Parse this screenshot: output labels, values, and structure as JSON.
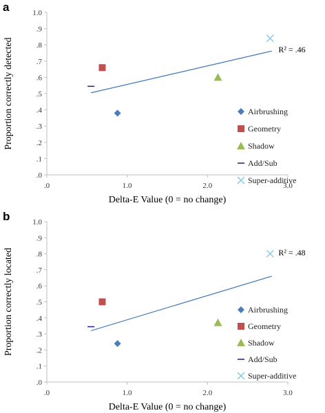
{
  "chart_data": [
    {
      "type": "scatter",
      "panel_label": "a",
      "xlabel": "Delta-E  Value  (0 = no change)",
      "ylabel": "Proportion correctly detected",
      "xlim": [
        0,
        3
      ],
      "ylim": [
        0,
        1
      ],
      "x_ticks": [
        ".0",
        "1.0",
        "2.0",
        "3.0"
      ],
      "y_ticks": [
        ".0",
        ".1",
        ".2",
        ".3",
        ".4",
        ".5",
        ".6",
        ".7",
        ".8",
        ".9",
        "1.0"
      ],
      "series": [
        {
          "name": "Airbrushing",
          "marker": "diamond",
          "color": "#4a7ebb",
          "x": [
            0.88
          ],
          "y": [
            0.38
          ]
        },
        {
          "name": "Geometry",
          "marker": "square",
          "color": "#c0504d",
          "x": [
            0.69
          ],
          "y": [
            0.66
          ]
        },
        {
          "name": "Shadow",
          "marker": "triangle",
          "color": "#9bbb59",
          "x": [
            2.13
          ],
          "y": [
            0.6
          ]
        },
        {
          "name": "Add/Sub",
          "marker": "dash",
          "color": "#1f1f7a",
          "x": [
            0.55
          ],
          "y": [
            0.545
          ]
        },
        {
          "name": "Super-additive",
          "marker": "x",
          "color": "#7ec8e3",
          "x": [
            2.78
          ],
          "y": [
            0.84
          ]
        }
      ],
      "trendline": {
        "x": [
          0.55,
          2.8
        ],
        "y": [
          0.505,
          0.762
        ],
        "color": "#4a7ebb",
        "label": "R² = .46"
      },
      "legend": "right",
      "grid": false
    },
    {
      "type": "scatter",
      "panel_label": "b",
      "xlabel": "Delta-E  Value  (0 = no change)",
      "ylabel": "Proportion correctly located",
      "xlim": [
        0,
        3
      ],
      "ylim": [
        0,
        1
      ],
      "x_ticks": [
        ".0",
        "1.0",
        "2.0",
        "3.0"
      ],
      "y_ticks": [
        ".0",
        ".1",
        ".2",
        ".3",
        ".4",
        ".5",
        ".6",
        ".7",
        ".8",
        ".9",
        "1.0"
      ],
      "series": [
        {
          "name": "Airbrushing",
          "marker": "diamond",
          "color": "#4a7ebb",
          "x": [
            0.88
          ],
          "y": [
            0.24
          ]
        },
        {
          "name": "Geometry",
          "marker": "square",
          "color": "#c0504d",
          "x": [
            0.69
          ],
          "y": [
            0.5
          ]
        },
        {
          "name": "Shadow",
          "marker": "triangle",
          "color": "#9bbb59",
          "x": [
            2.13
          ],
          "y": [
            0.37
          ]
        },
        {
          "name": "Add/Sub",
          "marker": "dash",
          "color": "#1f1f7a",
          "x": [
            0.55
          ],
          "y": [
            0.345
          ]
        },
        {
          "name": "Super-additive",
          "marker": "x",
          "color": "#7ec8e3",
          "x": [
            2.78
          ],
          "y": [
            0.8
          ]
        }
      ],
      "trendline": {
        "x": [
          0.55,
          2.8
        ],
        "y": [
          0.32,
          0.66
        ],
        "color": "#4a7ebb",
        "label": "R² = .48"
      },
      "legend": "right",
      "grid": false
    }
  ]
}
